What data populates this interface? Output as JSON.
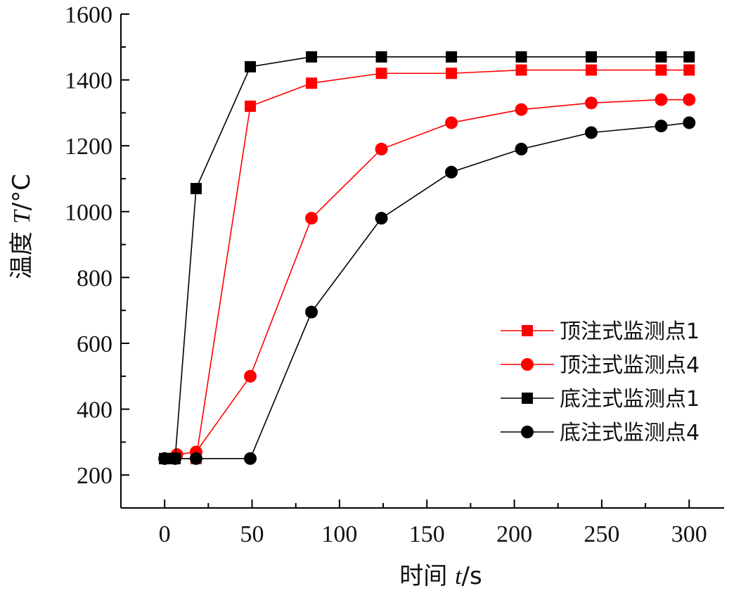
{
  "chart_data": {
    "type": "line",
    "title": "",
    "xlabel": "时间 t/s",
    "xlabel_parts": {
      "main": "时间 ",
      "var": "t",
      "unit": "/s"
    },
    "ylabel": "温度 T/°C",
    "ylabel_parts": {
      "main": "温度 ",
      "var": "T",
      "unit": "/°C"
    },
    "xlim": [
      -25,
      320
    ],
    "ylim": [
      100,
      1600
    ],
    "x_ticks": [
      0,
      50,
      100,
      150,
      200,
      250,
      300
    ],
    "y_ticks": [
      200,
      400,
      600,
      800,
      1000,
      1200,
      1400,
      1600
    ],
    "grid": false,
    "legend_position": "lower-right",
    "series": [
      {
        "name": "顶注式监测点1",
        "color": "#ff0000",
        "marker": "square",
        "x": [
          0,
          5,
          18,
          49,
          84,
          124,
          164,
          204,
          244,
          284,
          300
        ],
        "y": [
          250,
          250,
          250,
          1320,
          1390,
          1420,
          1420,
          1430,
          1430,
          1430,
          1430
        ]
      },
      {
        "name": "顶注式监测点4",
        "color": "#ff0000",
        "marker": "circle",
        "x": [
          0,
          7,
          18,
          49,
          84,
          124,
          164,
          204,
          244,
          284,
          300
        ],
        "y": [
          250,
          262,
          270,
          500,
          980,
          1190,
          1270,
          1310,
          1330,
          1340,
          1340
        ]
      },
      {
        "name": "底注式监测点1",
        "color": "#000000",
        "marker": "square",
        "x": [
          0,
          6,
          18,
          49,
          84,
          124,
          164,
          204,
          244,
          284,
          300
        ],
        "y": [
          250,
          250,
          1070,
          1440,
          1470,
          1470,
          1470,
          1470,
          1470,
          1470,
          1470
        ]
      },
      {
        "name": "底注式监测点4",
        "color": "#000000",
        "marker": "circle",
        "x": [
          0,
          6,
          18,
          49,
          84,
          124,
          164,
          204,
          244,
          284,
          300
        ],
        "y": [
          250,
          250,
          250,
          250,
          695,
          980,
          1120,
          1190,
          1240,
          1260,
          1270
        ]
      }
    ]
  }
}
